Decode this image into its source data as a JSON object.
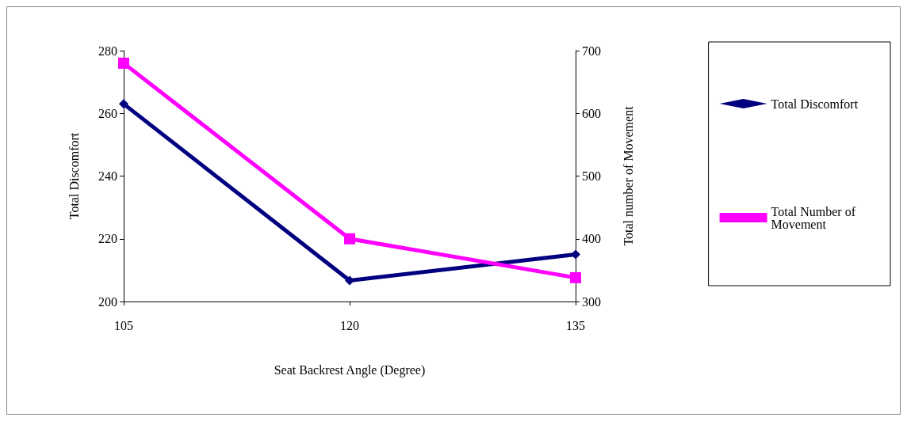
{
  "chart_data": {
    "type": "line",
    "xlabel": "Seat Backrest Angle (Degree)",
    "ylabel": "Total Discomfort",
    "y2label": "Total number of Movement",
    "x": [
      105,
      120,
      135
    ],
    "xlim": [
      105,
      135
    ],
    "xticks": [
      105,
      120,
      135
    ],
    "ylim": [
      200,
      280
    ],
    "yticks": [
      200,
      220,
      240,
      260,
      280
    ],
    "y2lim": [
      300,
      700
    ],
    "y2ticks": [
      300,
      400,
      500,
      600,
      700
    ],
    "grid": false,
    "legend": "right",
    "series": [
      {
        "name": "Total Discomfort",
        "color": "#000080",
        "marker": "diamond",
        "values": [
          263,
          206.7,
          215
        ]
      },
      {
        "name": "Total Number of Movement",
        "color": "#ff00ff",
        "marker": "square",
        "axis": "y2",
        "values": [
          680,
          400,
          338
        ]
      }
    ]
  }
}
